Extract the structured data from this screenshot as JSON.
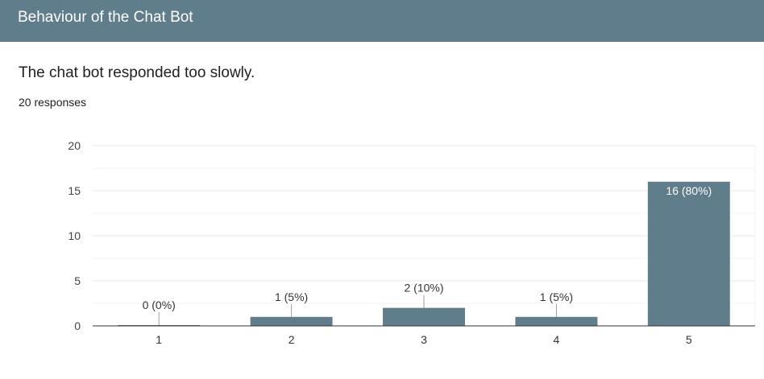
{
  "header": {
    "title": "Behaviour of the Chat Bot"
  },
  "question": {
    "title": "The chat bot responded too slowly.",
    "responses": "20 responses"
  },
  "chart_data": {
    "type": "bar",
    "categories": [
      "1",
      "2",
      "3",
      "4",
      "5"
    ],
    "values": [
      0,
      1,
      2,
      1,
      16
    ],
    "data_labels": [
      "0 (0%)",
      "1 (5%)",
      "2 (10%)",
      "1 (5%)",
      "16 (80%)"
    ],
    "yticks": [
      "0",
      "5",
      "10",
      "15",
      "20"
    ],
    "ylim": [
      0,
      20
    ],
    "grid": true,
    "bar_color": "#607d8b"
  }
}
